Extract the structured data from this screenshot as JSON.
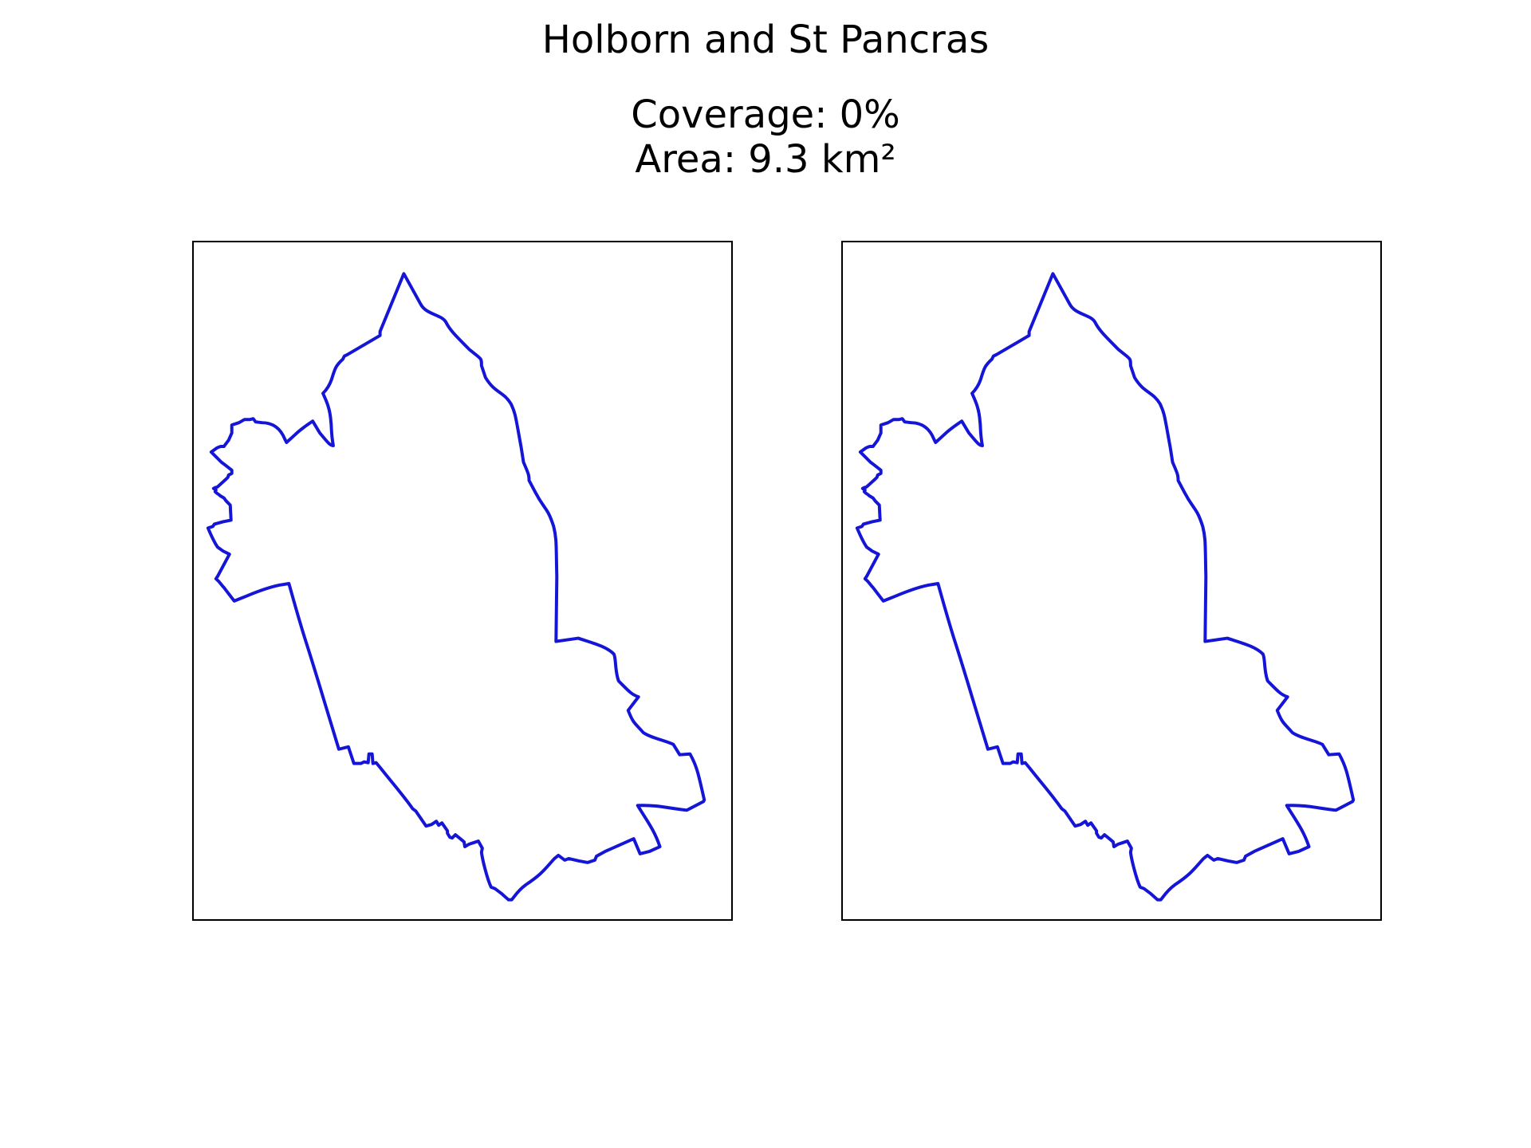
{
  "title": "Holborn and St Pancras",
  "coverage_text": "Coverage: 0%",
  "area_text": "Area: 9.3 km²",
  "boundary_color": "#1515d8",
  "frame_color": "#000000"
}
